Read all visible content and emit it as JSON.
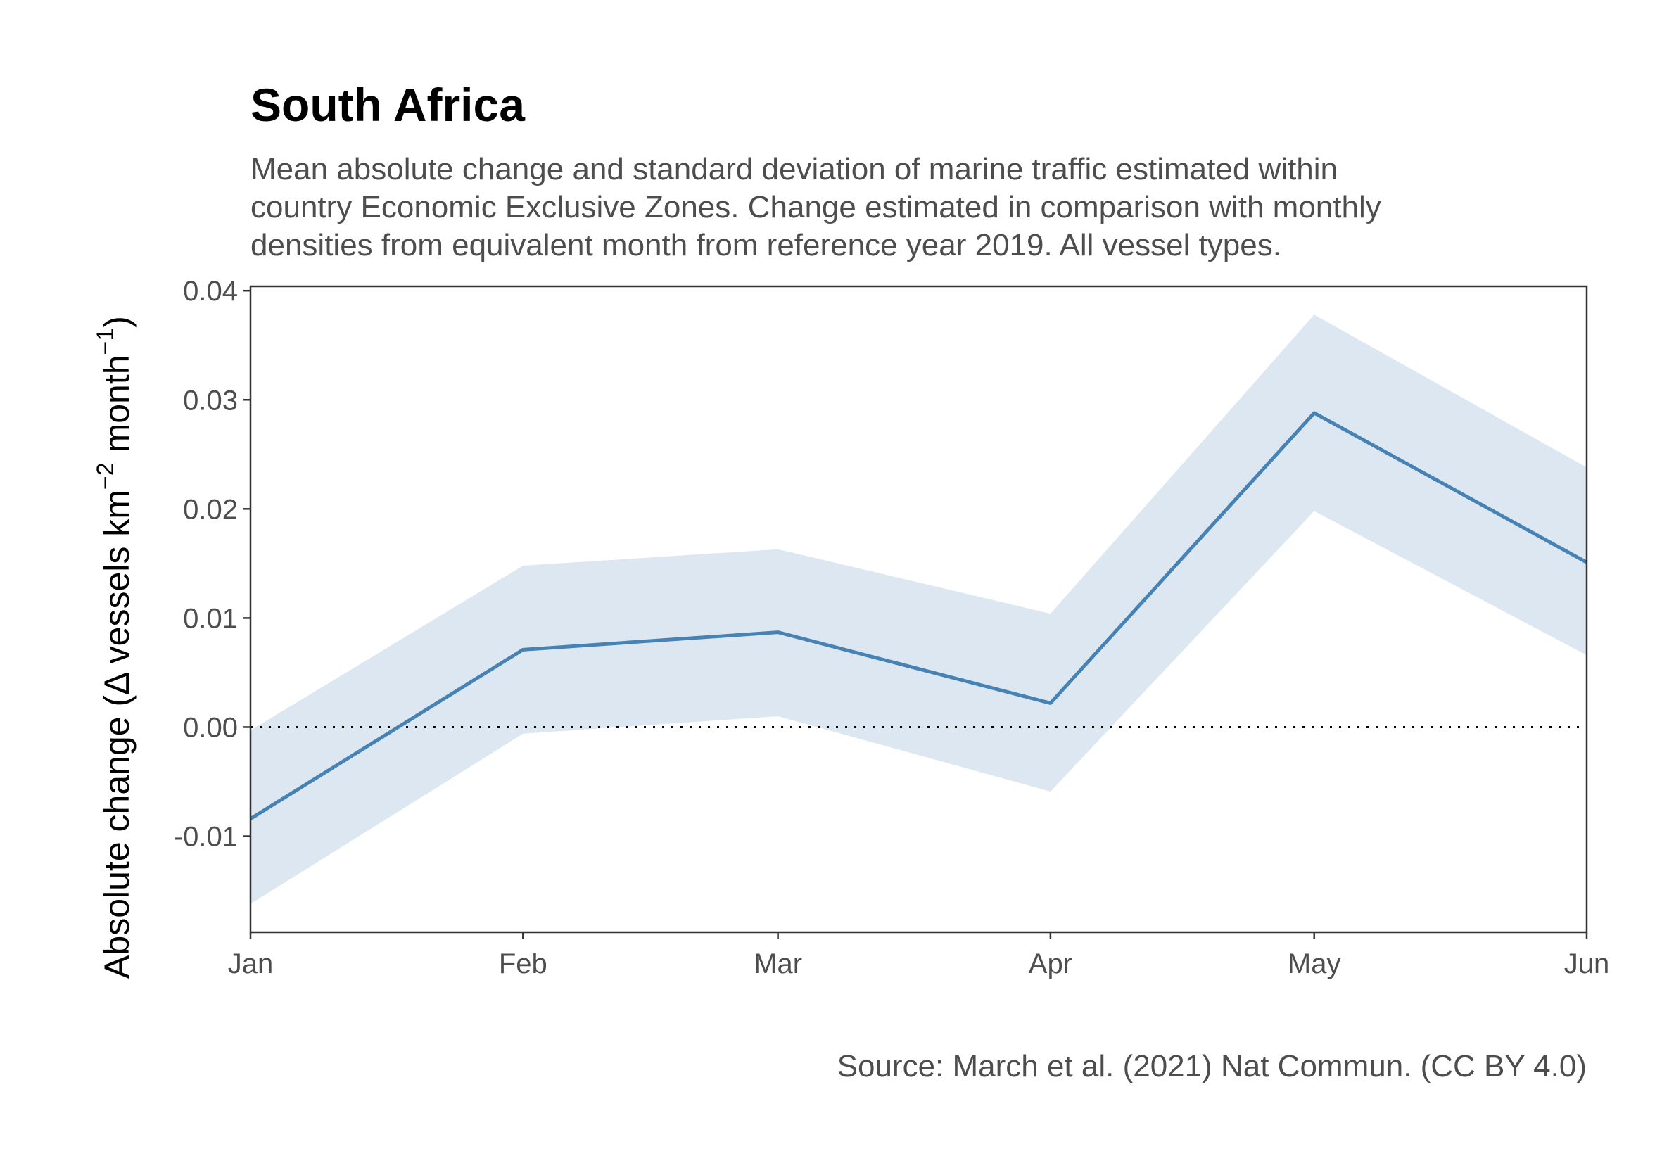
{
  "chart_data": {
    "type": "line",
    "title": "South Africa",
    "subtitle": [
      "Mean absolute change and standard deviation of marine traffic estimated within",
      "country Economic Exclusive Zones. Change estimated in comparison with monthly",
      "densities from equivalent month from reference year 2019. All vessel types."
    ],
    "ylabel": {
      "prefix": "Absolute change (",
      "delta": "Δ",
      "mid": " vessels km",
      "sup1": "−2",
      "mid2": " month",
      "sup2": "−1",
      "suffix": ")"
    },
    "xlabel": "",
    "caption": "Source: March et al. (2021) Nat Commun. (CC BY 4.0)",
    "categories": [
      "Jan",
      "Feb",
      "Mar",
      "Apr",
      "May",
      "Jun"
    ],
    "x_day_of_year": [
      1,
      32,
      61,
      92,
      122,
      153
    ],
    "series": [
      {
        "values": [
          -0.0084,
          0.0071,
          0.0087,
          0.0022,
          0.0288,
          0.0151
        ],
        "lower": [
          -0.0162,
          -0.0006,
          0.001,
          -0.0059,
          0.0198,
          0.0066
        ],
        "upper": [
          -0.0003,
          0.0148,
          0.0163,
          0.0104,
          0.0378,
          0.0238
        ]
      }
    ],
    "ylim": [
      -0.0188,
      0.0404
    ],
    "yticks": [
      -0.01,
      0.0,
      0.01,
      0.02,
      0.03,
      0.04
    ],
    "ytick_labels": [
      "-0.01",
      "0.00",
      "0.01",
      "0.02",
      "0.03",
      "0.04"
    ],
    "reference_line": 0,
    "grid": false,
    "colors": {
      "line": "#4682b4",
      "ribbon": "#dce7f1",
      "axis": "#333333",
      "reference": "#000000"
    }
  }
}
